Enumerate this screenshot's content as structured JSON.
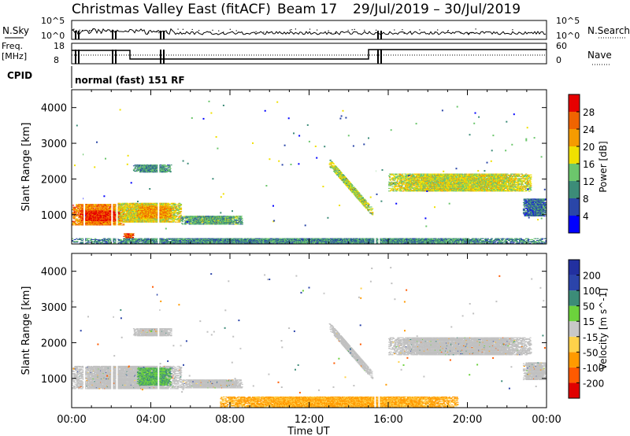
{
  "header": {
    "radar": "Christmas Valley East (fitACF)",
    "beam": "Beam 17",
    "dates": "29/Jul/2019 – 30/Jul/2019"
  },
  "top_panels": {
    "nsky_label": "N.Sky",
    "nsearch_label": "N.Search",
    "nsky_ticks": [
      "10^5",
      "10^0"
    ],
    "nsearch_ticks": [
      "10^5",
      "10^0"
    ],
    "freq_label_1": "Freq.",
    "freq_label_2": "[MHz]",
    "freq_ticks": [
      "18",
      "8"
    ],
    "nave_label": "Nave",
    "nave_ticks": [
      "60",
      "0"
    ],
    "cpid_label": "CPID",
    "cpid_text": "normal (fast) 151 RF"
  },
  "colors": {
    "power_scale": [
      "#0000ff",
      "#2a46a8",
      "#3c8c78",
      "#6cc66c",
      "#f0e000",
      "#f59b00",
      "#f06400",
      "#e60000"
    ],
    "velocity_scale": [
      "#e00000",
      "#ff5a00",
      "#ff9a00",
      "#ffd24a",
      "#c8c8c8",
      "#6cd23c",
      "#3c8c78",
      "#2b44aa",
      "#2230a0"
    ],
    "ground_scatter": "#c0c0c0"
  },
  "chart_data": [
    {
      "type": "heatmap",
      "title": "",
      "xlabel": "",
      "ylabel": "Slant Range [km]",
      "x_unit": "hours UT",
      "xlim": [
        0,
        24
      ],
      "ylim": [
        180,
        4500
      ],
      "yticks": [
        1000,
        2000,
        3000,
        4000
      ],
      "colorbar": {
        "label": "Power [dB]",
        "ticks": [
          4,
          8,
          12,
          16,
          20,
          24,
          28
        ],
        "range": [
          0,
          32
        ]
      },
      "regions": [
        {
          "t": [
            0.0,
            2.6
          ],
          "r": [
            700,
            1300
          ],
          "value": 24
        },
        {
          "t": [
            0.4,
            2.4
          ],
          "r": [
            820,
            1120
          ],
          "value": 29
        },
        {
          "t": [
            2.2,
            5.5
          ],
          "r": [
            780,
            1330
          ],
          "value": 18
        },
        {
          "t": [
            3.3,
            5.0
          ],
          "r": [
            900,
            1250
          ],
          "value": 23
        },
        {
          "t": [
            5.5,
            8.6
          ],
          "r": [
            720,
            960
          ],
          "value": 12
        },
        {
          "t": [
            2.6,
            3.1
          ],
          "r": [
            330,
            470
          ],
          "value": 28
        },
        {
          "t": [
            3.1,
            5.0
          ],
          "r": [
            2180,
            2400
          ],
          "value": 11
        },
        {
          "t": [
            13.0,
            15.2
          ],
          "r": [
            1050,
            2450
          ],
          "value": 16,
          "slant": true
        },
        {
          "t": [
            16.0,
            23.2
          ],
          "r": [
            1650,
            2150
          ],
          "value": 17
        },
        {
          "t": [
            22.8,
            24.0
          ],
          "r": [
            950,
            1450
          ],
          "value": 8
        },
        {
          "t": [
            0.0,
            24.0
          ],
          "r": [
            190,
            330
          ],
          "value": 10
        }
      ]
    },
    {
      "type": "heatmap",
      "title": "",
      "xlabel": "Time UT",
      "ylabel": "Slant Range [km]",
      "x_unit": "hours UT",
      "xlim": [
        0,
        24
      ],
      "ylim": [
        180,
        4500
      ],
      "yticks": [
        1000,
        2000,
        3000,
        4000
      ],
      "xtick_labels": [
        "00:00",
        "04:00",
        "08:00",
        "12:00",
        "16:00",
        "20:00",
        "00:00"
      ],
      "colorbar": {
        "label": "Velocity [m s^-1]",
        "ticks": [
          200,
          100,
          50,
          15,
          -15,
          -50,
          -100,
          -200
        ],
        "range": [
          -250,
          250
        ]
      },
      "regions": [
        {
          "t": [
            0.0,
            5.5
          ],
          "r": [
            700,
            1330
          ],
          "value": 0,
          "ground_scatter": true
        },
        {
          "t": [
            3.3,
            5.0
          ],
          "r": [
            800,
            1280
          ],
          "value": 45
        },
        {
          "t": [
            5.5,
            8.6
          ],
          "r": [
            720,
            960
          ],
          "value": 0,
          "ground_scatter": true
        },
        {
          "t": [
            3.1,
            5.0
          ],
          "r": [
            2180,
            2400
          ],
          "value": 0,
          "ground_scatter": true
        },
        {
          "t": [
            13.0,
            15.2
          ],
          "r": [
            1050,
            2450
          ],
          "value": 0,
          "ground_scatter": true,
          "slant": true
        },
        {
          "t": [
            16.0,
            23.2
          ],
          "r": [
            1650,
            2150
          ],
          "value": 0,
          "ground_scatter": true
        },
        {
          "t": [
            22.8,
            24.0
          ],
          "r": [
            950,
            1450
          ],
          "value": 0,
          "ground_scatter": true
        },
        {
          "t": [
            7.5,
            19.5
          ],
          "r": [
            190,
            480
          ],
          "value": -60
        }
      ]
    }
  ]
}
